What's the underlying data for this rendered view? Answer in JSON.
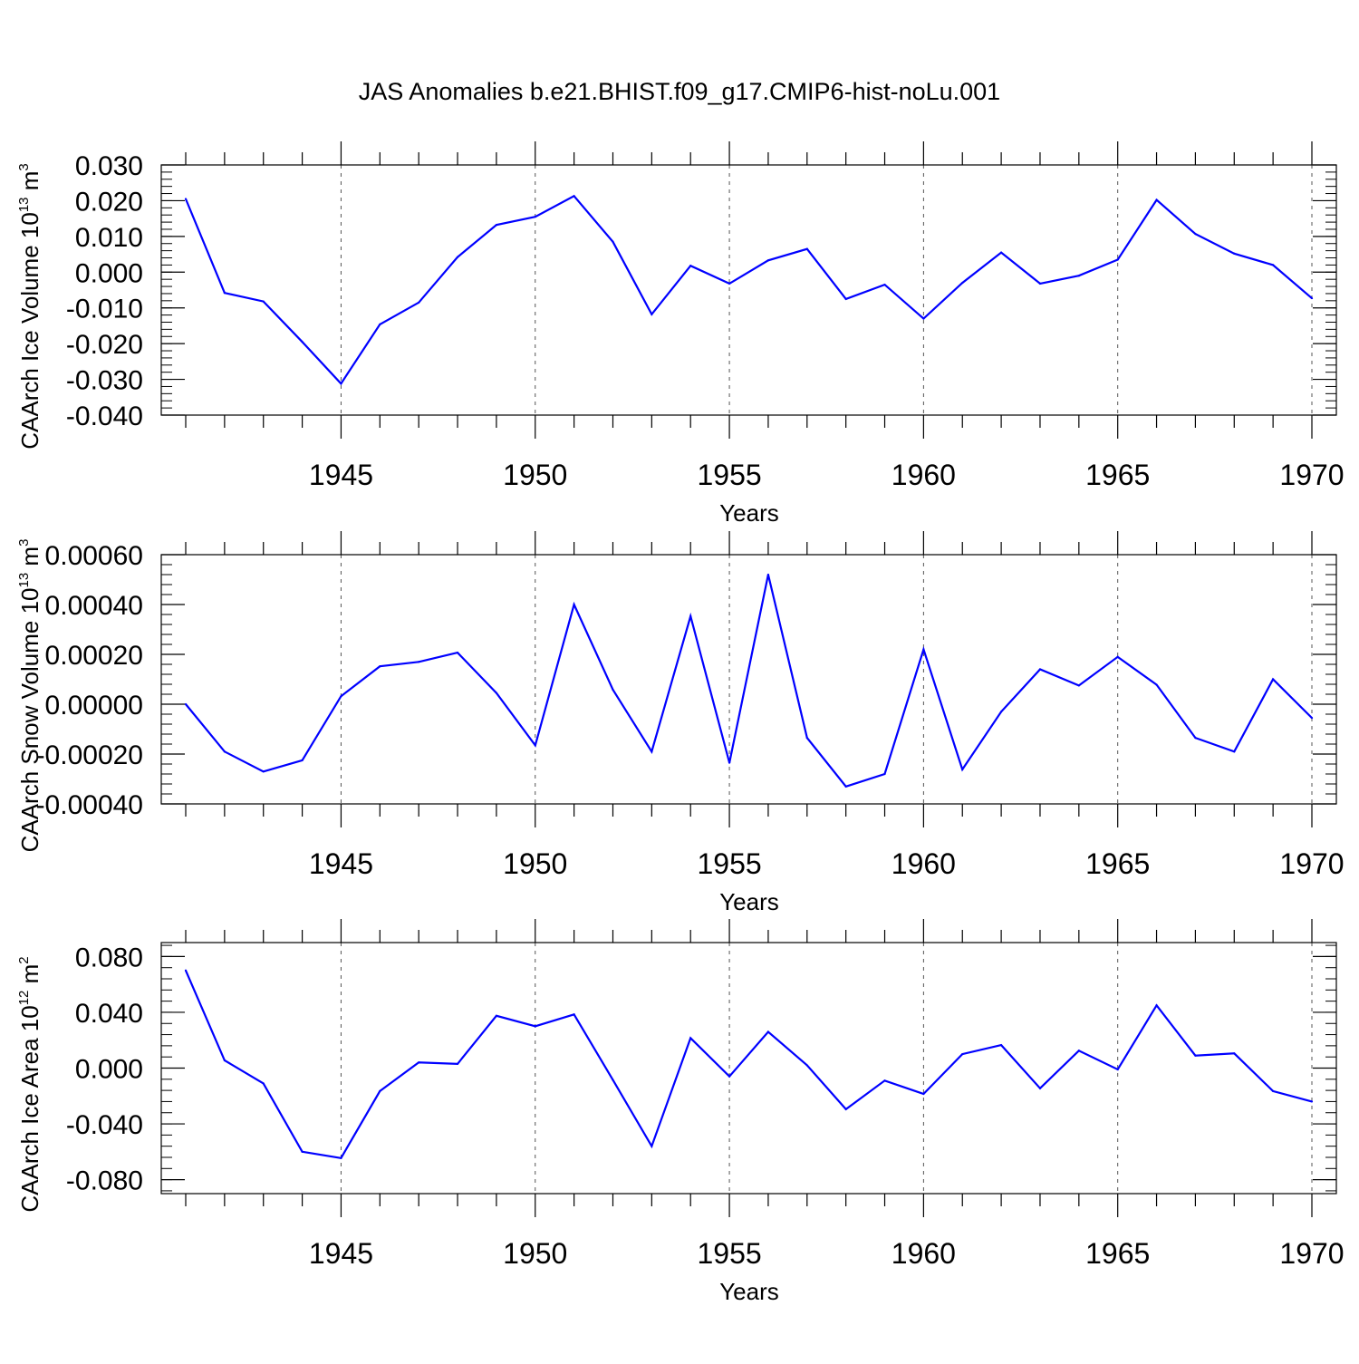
{
  "title": "JAS Anomalies b.e21.BHIST.f09_g17.CMIP6-hist-noLu.001",
  "colors": {
    "line": "#0000ff",
    "axis": "#000000",
    "grid": "#555555"
  },
  "chart_data": [
    {
      "type": "line",
      "ylabel_main": "CAArch Ice Volume 10",
      "ylabel_exp": "13",
      "ylabel_unit": " m",
      "ylabel_unit_exp": "3",
      "xlabel": "Years",
      "xlim": [
        1941,
        1970
      ],
      "ylim": [
        -0.04,
        0.03
      ],
      "xticks": [
        1945,
        1950,
        1955,
        1960,
        1965,
        1970
      ],
      "yticks": [
        {
          "value": -0.04,
          "label": "-0.040"
        },
        {
          "value": -0.03,
          "label": "-0.030"
        },
        {
          "value": -0.02,
          "label": "-0.020"
        },
        {
          "value": -0.01,
          "label": "-0.010"
        },
        {
          "value": 0.0,
          "label": "0.000"
        },
        {
          "value": 0.01,
          "label": "0.010"
        },
        {
          "value": 0.02,
          "label": "0.020"
        },
        {
          "value": 0.03,
          "label": "0.030"
        }
      ],
      "minor_step": 0.002,
      "x": [
        1941,
        1942,
        1943,
        1944,
        1945,
        1946,
        1947,
        1948,
        1949,
        1950,
        1951,
        1952,
        1953,
        1954,
        1955,
        1956,
        1957,
        1958,
        1959,
        1960,
        1961,
        1962,
        1963,
        1964,
        1965,
        1966,
        1967,
        1968,
        1969,
        1970
      ],
      "values": [
        0.0205,
        -0.0058,
        -0.0082,
        -0.0195,
        -0.0312,
        -0.0146,
        -0.0085,
        0.0042,
        0.0132,
        0.0155,
        0.0213,
        0.0085,
        -0.0118,
        0.0018,
        -0.0032,
        0.0033,
        0.0065,
        -0.0075,
        -0.0035,
        -0.013,
        -0.003,
        0.0055,
        -0.0032,
        -0.001,
        0.0035,
        0.0202,
        0.0107,
        0.0052,
        0.002,
        -0.0073
      ]
    },
    {
      "type": "line",
      "ylabel_main": "CAArch Snow Volume 10",
      "ylabel_exp": "13",
      "ylabel_unit": " m",
      "ylabel_unit_exp": "3",
      "xlabel": "Years",
      "xlim": [
        1941,
        1970
      ],
      "ylim": [
        -0.0004,
        0.0006
      ],
      "xticks": [
        1945,
        1950,
        1955,
        1960,
        1965,
        1970
      ],
      "yticks": [
        {
          "value": -0.0004,
          "label": "-0.00040"
        },
        {
          "value": -0.0002,
          "label": "-0.00020"
        },
        {
          "value": 0.0,
          "label": "0.00000"
        },
        {
          "value": 0.0002,
          "label": "0.00020"
        },
        {
          "value": 0.0004,
          "label": "0.00040"
        },
        {
          "value": 0.0006,
          "label": "0.00060"
        }
      ],
      "minor_step": 4e-05,
      "x": [
        1941,
        1942,
        1943,
        1944,
        1945,
        1946,
        1947,
        1948,
        1949,
        1950,
        1951,
        1952,
        1953,
        1954,
        1955,
        1956,
        1957,
        1958,
        1959,
        1960,
        1961,
        1962,
        1963,
        1964,
        1965,
        1966,
        1967,
        1968,
        1969,
        1970
      ],
      "values": [
        0.0,
        -0.00019,
        -0.00027,
        -0.000225,
        3.2e-05,
        0.000152,
        0.00017,
        0.000207,
        4.5e-05,
        -0.000165,
        0.0004,
        5.8e-05,
        -0.00019,
        0.000353,
        -0.000235,
        0.00052,
        -0.000135,
        -0.00033,
        -0.00028,
        0.00022,
        -0.000262,
        -3e-05,
        0.00014,
        7.5e-05,
        0.00019,
        7.8e-05,
        -0.000135,
        -0.00019,
        0.0001,
        -5.5e-05
      ]
    },
    {
      "type": "line",
      "ylabel_main": "CAArch Ice Area 10",
      "ylabel_exp": "12",
      "ylabel_unit": " m",
      "ylabel_unit_exp": "2",
      "xlabel": "Years",
      "xlim": [
        1941,
        1970
      ],
      "ylim": [
        -0.09,
        0.09
      ],
      "xticks": [
        1945,
        1950,
        1955,
        1960,
        1965,
        1970
      ],
      "yticks": [
        {
          "value": -0.08,
          "label": "-0.080"
        },
        {
          "value": -0.04,
          "label": "-0.040"
        },
        {
          "value": 0.0,
          "label": "0.000"
        },
        {
          "value": 0.04,
          "label": "0.040"
        },
        {
          "value": 0.08,
          "label": "0.080"
        }
      ],
      "minor_step": 0.008,
      "x": [
        1941,
        1942,
        1943,
        1944,
        1945,
        1946,
        1947,
        1948,
        1949,
        1950,
        1951,
        1952,
        1953,
        1954,
        1955,
        1956,
        1957,
        1958,
        1959,
        1960,
        1961,
        1962,
        1963,
        1964,
        1965,
        1966,
        1967,
        1968,
        1969,
        1970
      ],
      "values": [
        0.07,
        0.0055,
        -0.011,
        -0.06,
        -0.0645,
        -0.0165,
        0.004,
        0.003,
        0.0375,
        0.03,
        0.0385,
        -0.0085,
        -0.056,
        0.0215,
        -0.006,
        0.026,
        0.002,
        -0.0295,
        -0.009,
        -0.0185,
        0.01,
        0.0165,
        -0.0145,
        0.0125,
        -0.001,
        0.045,
        0.009,
        0.0105,
        -0.0165,
        -0.024
      ]
    }
  ]
}
